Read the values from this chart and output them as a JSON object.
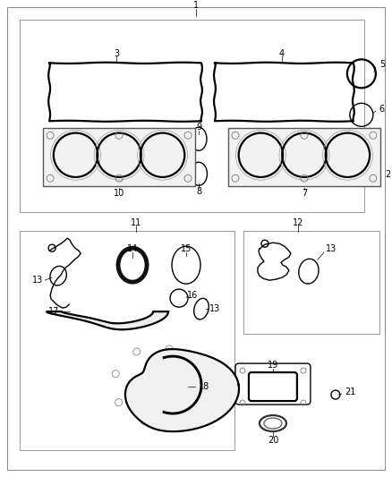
{
  "bg_color": "#ffffff",
  "lc": "#000000",
  "gray": "#888888",
  "light_gray": "#cccccc"
}
